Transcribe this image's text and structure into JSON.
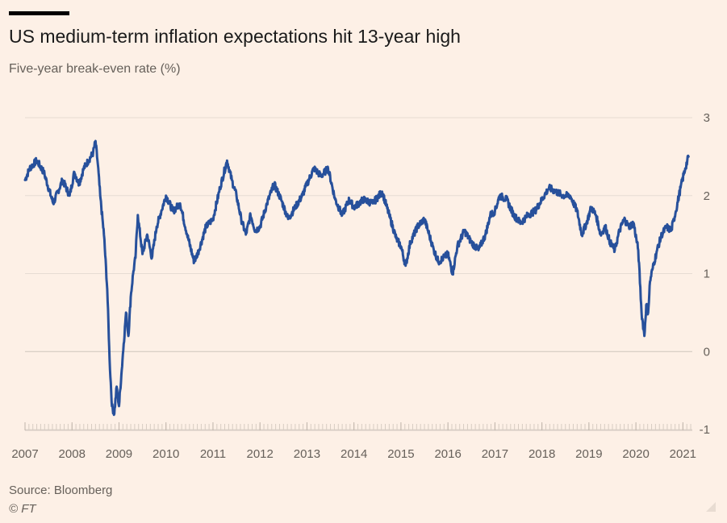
{
  "header": {
    "title": "US medium-term inflation expectations hit 13-year high",
    "subtitle": "Five-year break-even rate (%)"
  },
  "footer": {
    "source": "Source: Bloomberg",
    "copyright": "© FT"
  },
  "colors": {
    "background": "#fdf0e6",
    "line": "#27509b",
    "grid": "#e6dcd3",
    "text": "#66605a"
  },
  "chart_data": {
    "type": "line",
    "title": "US medium-term inflation expectations hit 13-year high",
    "ylabel": "Five-year break-even rate (%)",
    "xlabel": "",
    "xlim": [
      2007.0,
      2021.2
    ],
    "ylim": [
      -1,
      3
    ],
    "yticks": [
      3,
      2,
      1,
      0,
      -1
    ],
    "xticks": [
      "2007",
      "2008",
      "2009",
      "2010",
      "2011",
      "2012",
      "2013",
      "2014",
      "2015",
      "2016",
      "2017",
      "2018",
      "2019",
      "2020",
      "2021"
    ],
    "grid": true,
    "series": [
      {
        "name": "Five-year break-even rate",
        "x": [
          2007.0,
          2007.1,
          2007.25,
          2007.4,
          2007.6,
          2007.8,
          2007.95,
          2008.05,
          2008.15,
          2008.25,
          2008.35,
          2008.45,
          2008.5,
          2008.55,
          2008.6,
          2008.68,
          2008.75,
          2008.8,
          2008.85,
          2008.9,
          2008.95,
          2009.0,
          2009.05,
          2009.1,
          2009.15,
          2009.2,
          2009.25,
          2009.3,
          2009.35,
          2009.4,
          2009.5,
          2009.6,
          2009.7,
          2009.8,
          2009.9,
          2010.0,
          2010.15,
          2010.3,
          2010.45,
          2010.6,
          2010.7,
          2010.85,
          2011.0,
          2011.15,
          2011.3,
          2011.4,
          2011.5,
          2011.6,
          2011.7,
          2011.8,
          2011.9,
          2012.0,
          2012.15,
          2012.3,
          2012.45,
          2012.6,
          2012.75,
          2012.9,
          2013.0,
          2013.15,
          2013.3,
          2013.45,
          2013.6,
          2013.75,
          2013.9,
          2014.0,
          2014.2,
          2014.4,
          2014.6,
          2014.75,
          2014.9,
          2015.0,
          2015.1,
          2015.2,
          2015.35,
          2015.5,
          2015.6,
          2015.7,
          2015.8,
          2015.9,
          2016.0,
          2016.1,
          2016.2,
          2016.35,
          2016.5,
          2016.65,
          2016.8,
          2016.9,
          2017.0,
          2017.1,
          2017.25,
          2017.4,
          2017.55,
          2017.7,
          2017.85,
          2018.0,
          2018.15,
          2018.3,
          2018.45,
          2018.6,
          2018.75,
          2018.85,
          2018.95,
          2019.05,
          2019.15,
          2019.25,
          2019.35,
          2019.45,
          2019.55,
          2019.65,
          2019.75,
          2019.85,
          2019.95,
          2020.05,
          2020.12,
          2020.18,
          2020.22,
          2020.26,
          2020.3,
          2020.35,
          2020.45,
          2020.55,
          2020.65,
          2020.75,
          2020.85,
          2020.95,
          2021.05,
          2021.12
        ],
        "values": [
          2.2,
          2.35,
          2.45,
          2.3,
          1.9,
          2.2,
          2.0,
          2.3,
          2.15,
          2.35,
          2.45,
          2.55,
          2.7,
          2.4,
          2.0,
          1.5,
          0.8,
          -0.1,
          -0.7,
          -0.8,
          -0.45,
          -0.7,
          -0.3,
          0.1,
          0.5,
          0.2,
          0.7,
          1.0,
          1.2,
          1.75,
          1.25,
          1.5,
          1.2,
          1.6,
          1.8,
          2.0,
          1.8,
          1.9,
          1.5,
          1.15,
          1.3,
          1.6,
          1.7,
          2.1,
          2.45,
          2.2,
          2.0,
          1.7,
          1.5,
          1.75,
          1.55,
          1.6,
          1.9,
          2.15,
          1.95,
          1.7,
          1.85,
          2.0,
          2.15,
          2.35,
          2.25,
          2.35,
          1.95,
          1.75,
          1.95,
          1.85,
          1.95,
          1.9,
          2.05,
          1.75,
          1.45,
          1.35,
          1.1,
          1.4,
          1.6,
          1.7,
          1.5,
          1.3,
          1.15,
          1.2,
          1.25,
          1.0,
          1.35,
          1.55,
          1.4,
          1.3,
          1.5,
          1.75,
          1.8,
          2.0,
          1.95,
          1.75,
          1.65,
          1.75,
          1.8,
          1.95,
          2.1,
          2.05,
          2.0,
          2.0,
          1.8,
          1.5,
          1.65,
          1.85,
          1.75,
          1.5,
          1.6,
          1.4,
          1.3,
          1.55,
          1.7,
          1.6,
          1.65,
          1.3,
          0.5,
          0.2,
          0.6,
          0.5,
          0.9,
          1.05,
          1.3,
          1.5,
          1.6,
          1.55,
          1.8,
          2.1,
          2.35,
          2.5
        ]
      }
    ]
  }
}
